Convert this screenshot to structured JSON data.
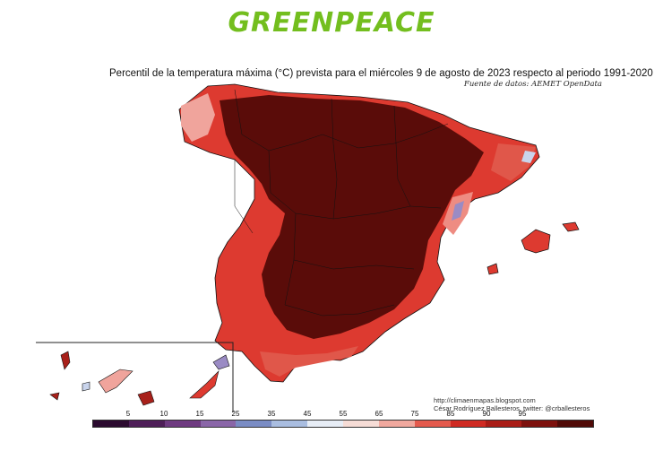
{
  "logo_text": "GREENPEACE",
  "title": "Percentil de la temperatura máxima (°C) prevista para el miércoles 9 de agosto de 2023 respecto al periodo 1991-2020",
  "source": "Fuente de datos: AEMET OpenData",
  "credit_url": "http://climaenmapas.blogspot.com",
  "credit_author": "César Rodríguez Ballesteros, twitter: @crballesteros",
  "colors": {
    "p_lowest": "#2a0a2e",
    "p_low": "#5d2a6b",
    "p_mid_low": "#9a8bc4",
    "p_mid": "#ffffff",
    "p_mid_high": "#f0a49c",
    "p_high": "#dd3a30",
    "p_very_high": "#a8201a",
    "p_max": "#5a0c09"
  },
  "legend": {
    "ticks": [
      "5",
      "10",
      "15",
      "25",
      "35",
      "45",
      "55",
      "65",
      "75",
      "85",
      "90",
      "95"
    ],
    "colors": [
      "#2b0a2f",
      "#4e1e58",
      "#6e3a80",
      "#8a66a8",
      "#7a8cc4",
      "#a9bde0",
      "#e7edf6",
      "#f6dcd6",
      "#f0a89e",
      "#e45a4d",
      "#cf2a22",
      "#a91c16",
      "#7d110d",
      "#500a07"
    ]
  }
}
